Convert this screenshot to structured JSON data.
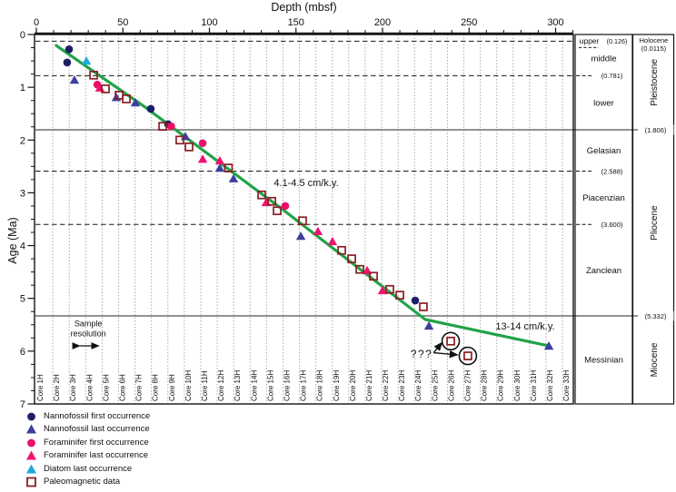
{
  "chart_data": {
    "type": "scatter",
    "title": "Depth (mbsf)",
    "xlabel": "Depth (mbsf)",
    "ylabel": "Age (Ma)",
    "xlim": [
      0,
      311
    ],
    "ylim": [
      0,
      7
    ],
    "x_ticks": [
      0,
      50,
      100,
      150,
      200,
      250,
      300
    ],
    "x_minor_step": 10,
    "y_ticks": [
      0,
      1,
      2,
      3,
      4,
      5,
      6,
      7
    ],
    "y_minor_step": 0.25,
    "grid": "core-boundaries-dotted",
    "cores": {
      "prefix": "Core ",
      "suffix": "H",
      "count": 33,
      "length_m": 9.5
    },
    "series": [
      {
        "name": "Nannofossil first occurrence",
        "marker": "circle",
        "color": "#1c1f66",
        "points": [
          [
            18.9,
            0.28
          ],
          [
            17.8,
            0.53
          ],
          [
            66.1,
            1.41
          ],
          [
            76.1,
            1.7
          ],
          [
            218.9,
            5.04
          ]
        ]
      },
      {
        "name": "Nannofossil last occurrence",
        "marker": "triangle",
        "color": "#3d3f9d",
        "points": [
          [
            22.0,
            0.86
          ],
          [
            46.2,
            1.19
          ],
          [
            57.2,
            1.29
          ],
          [
            86.1,
            1.93
          ],
          [
            106.0,
            2.53
          ],
          [
            113.9,
            2.73
          ],
          [
            152.8,
            3.82
          ],
          [
            226.8,
            5.52
          ],
          [
            296.1,
            5.9
          ]
        ]
      },
      {
        "name": "Foraminifer first occurrence",
        "marker": "circle",
        "color": "#ed0e6a",
        "points": [
          [
            35.2,
            0.95
          ],
          [
            77.9,
            1.74
          ],
          [
            96.1,
            2.06
          ],
          [
            143.8,
            3.25
          ]
        ]
      },
      {
        "name": "Foraminifer last occurrence",
        "marker": "triangle",
        "color": "#ee1370",
        "points": [
          [
            36.7,
            1.01
          ],
          [
            96.1,
            2.36
          ],
          [
            106.0,
            2.39
          ],
          [
            132.8,
            3.18
          ],
          [
            162.7,
            3.73
          ],
          [
            171.1,
            3.92
          ],
          [
            191.1,
            4.47
          ],
          [
            200.0,
            4.85
          ]
        ]
      },
      {
        "name": "Diatom last occurrence",
        "marker": "triangle",
        "color": "#1cabd8",
        "points": [
          [
            28.9,
            0.5
          ]
        ]
      },
      {
        "name": "Paleomagnetic data",
        "marker": "square-open",
        "color": "#8b1f24",
        "points": [
          [
            33.1,
            0.77
          ],
          [
            39.9,
            1.03
          ],
          [
            47.8,
            1.15
          ],
          [
            52.0,
            1.22
          ],
          [
            73.0,
            1.74
          ],
          [
            82.9,
            2.0
          ],
          [
            88.2,
            2.13
          ],
          [
            111.0,
            2.53
          ],
          [
            130.2,
            3.04
          ],
          [
            136.0,
            3.16
          ],
          [
            139.1,
            3.34
          ],
          [
            153.8,
            3.53
          ],
          [
            176.4,
            4.09
          ],
          [
            182.2,
            4.25
          ],
          [
            186.9,
            4.45
          ],
          [
            194.8,
            4.58
          ],
          [
            204.2,
            4.83
          ],
          [
            210.0,
            4.94
          ],
          [
            223.6,
            5.16
          ],
          [
            239.4,
            5.81
          ],
          [
            249.3,
            6.09
          ]
        ]
      }
    ],
    "sed_rate_line": {
      "color": "#21a347",
      "points": [
        [
          11.5,
          0.21
        ],
        [
          63.0,
          1.38
        ],
        [
          141.7,
          3.3
        ],
        [
          224.7,
          5.4
        ],
        [
          296.1,
          5.9
        ]
      ]
    },
    "boundaries": [
      {
        "age": 0.126,
        "style": "dashed",
        "label": "(0.126)",
        "label_col": "stage"
      },
      {
        "age": 0.781,
        "style": "dashed",
        "label": "(0.781)",
        "label_col": "stage"
      },
      {
        "age": 1.806,
        "style": "solid",
        "label": "(1.806)",
        "label_col": "epoch"
      },
      {
        "age": 2.588,
        "style": "dashed",
        "label": "(2.588)",
        "label_col": "stage"
      },
      {
        "age": 3.6,
        "style": "dashed",
        "label": "(3.600)",
        "label_col": "stage"
      },
      {
        "age": 5.332,
        "style": "solid",
        "label": "(5.332)",
        "label_col": "epoch"
      }
    ],
    "stages": [
      {
        "name": "upper",
        "from": 0,
        "to": 0.126
      },
      {
        "name": "middle",
        "from": 0.126,
        "to": 0.781
      },
      {
        "name": "lower",
        "from": 0.781,
        "to": 1.806
      },
      {
        "name": "Gelasian",
        "from": 1.806,
        "to": 2.588
      },
      {
        "name": "Piacenzian",
        "from": 2.588,
        "to": 3.6
      },
      {
        "name": "Zanclean",
        "from": 3.6,
        "to": 5.332
      },
      {
        "name": "Messinian",
        "from": 5.332,
        "to": 7
      }
    ],
    "epochs": [
      {
        "name": "Holocene",
        "note": "(0.0115)",
        "from": 0,
        "to": 0.0115,
        "rotated": false
      },
      {
        "name": "Pleistocene",
        "note": "",
        "from": 0.0115,
        "to": 1.806,
        "rotated": true
      },
      {
        "name": "Pliocene",
        "note": "",
        "from": 1.806,
        "to": 5.332,
        "rotated": true
      },
      {
        "name": "Miocene",
        "note": "",
        "from": 5.332,
        "to": 7,
        "rotated": true
      }
    ],
    "annotations": [
      {
        "id": "rate-upper",
        "text": "4.1-4.5 cm/k.y.",
        "depth": 155.9,
        "age": 2.82,
        "font": 11
      },
      {
        "id": "rate-lower",
        "text": "13-14 cm/k.y.",
        "depth": 282.4,
        "age": 5.54,
        "font": 11
      },
      {
        "id": "query",
        "text": "???",
        "depth": 222.6,
        "age": 6.07,
        "font": 12
      }
    ],
    "sample_resolution": {
      "line1": "Sample",
      "line2": "resolution",
      "depth_center": 30,
      "age_line1": 5.48,
      "age_line2": 5.67,
      "arrow_from_depth": 25,
      "arrow_to_depth": 36,
      "arrow_age": 5.9
    },
    "highlight_circles": [
      [
        239.4,
        5.81
      ],
      [
        249.3,
        6.09
      ]
    ],
    "query_arrows": [
      {
        "from": [
          229.5,
          6.03
        ],
        "to": [
          234.3,
          5.84
        ]
      },
      {
        "from": [
          229.5,
          6.03
        ],
        "to": [
          243.3,
          6.07
        ]
      }
    ]
  },
  "legend_title": "",
  "colors": {
    "sed_rate_green": "#21a347",
    "dashed_boundary": "#161616",
    "solid_boundary": "#6f6f6f",
    "core_grid": "#a3a3a3",
    "frame": "#111111"
  }
}
